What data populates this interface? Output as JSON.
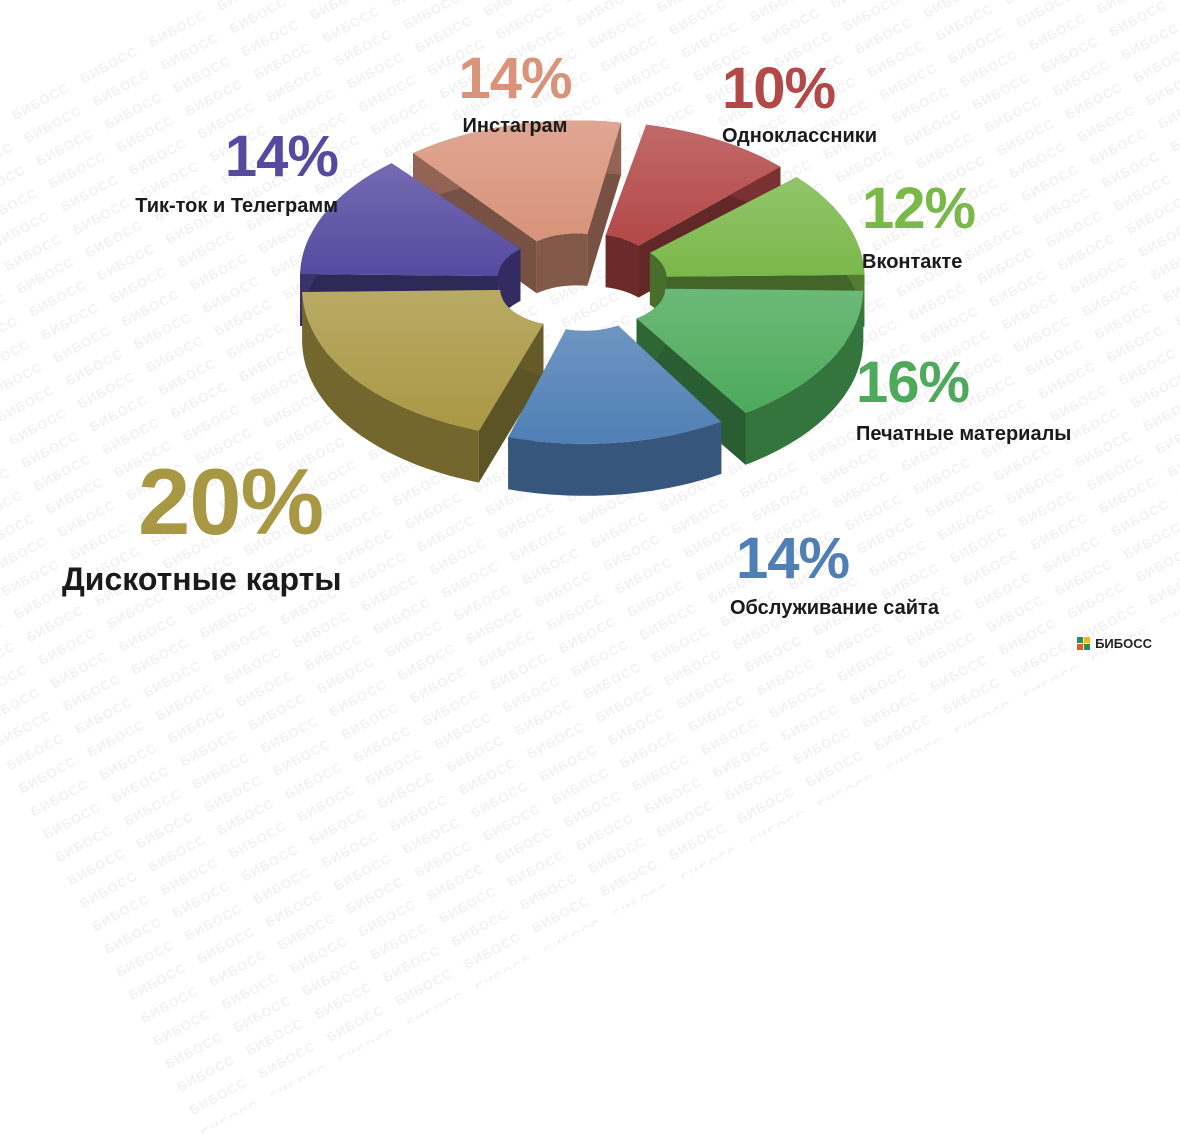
{
  "watermark": "БИБОСС",
  "brand": {
    "name": "БИБОСС",
    "colors": [
      "#2e8b57",
      "#f2b705",
      "#e35a2a"
    ]
  },
  "chart_data": {
    "type": "pie",
    "style": "3d-exploded-donut",
    "slices": [
      {
        "label": "Одноклассники",
        "value": 10,
        "display": "10%",
        "color": "#b34848"
      },
      {
        "label": "Вконтакте",
        "value": 12,
        "display": "12%",
        "color": "#7ab84a"
      },
      {
        "label": "Печатные материалы",
        "value": 16,
        "display": "16%",
        "color": "#4caa5a"
      },
      {
        "label": "Обслуживание сайта",
        "value": 14,
        "display": "14%",
        "color": "#4f7fb5"
      },
      {
        "label": "Дискотные карты",
        "value": 20,
        "display": "20%",
        "color": "#a99843"
      },
      {
        "label": "Тик-ток и Телеграмм",
        "value": 14,
        "display": "14%",
        "color": "#564aa0"
      },
      {
        "label": "Инстаграм",
        "value": 14,
        "display": "14%",
        "color": "#d8937a"
      }
    ]
  }
}
